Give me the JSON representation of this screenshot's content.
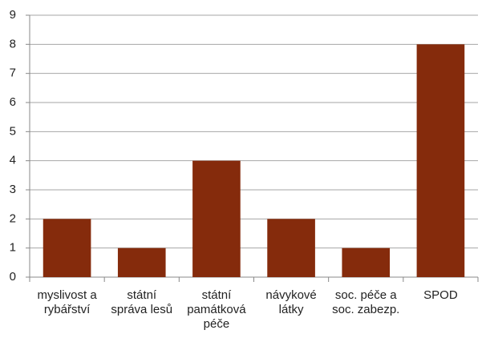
{
  "chart_data": {
    "type": "bar",
    "categories": [
      "myslivost a rybářství",
      "státní správa lesů",
      "státní památková péče",
      "návykové látky",
      "soc. péče a soc. zabezp.",
      "SPOD"
    ],
    "values": [
      2,
      1,
      4,
      2,
      1,
      8
    ],
    "color": "#852b0c",
    "ylim": [
      0,
      9
    ],
    "yticks": [
      0,
      1,
      2,
      3,
      4,
      5,
      6,
      7,
      8,
      9
    ],
    "grid": true
  }
}
